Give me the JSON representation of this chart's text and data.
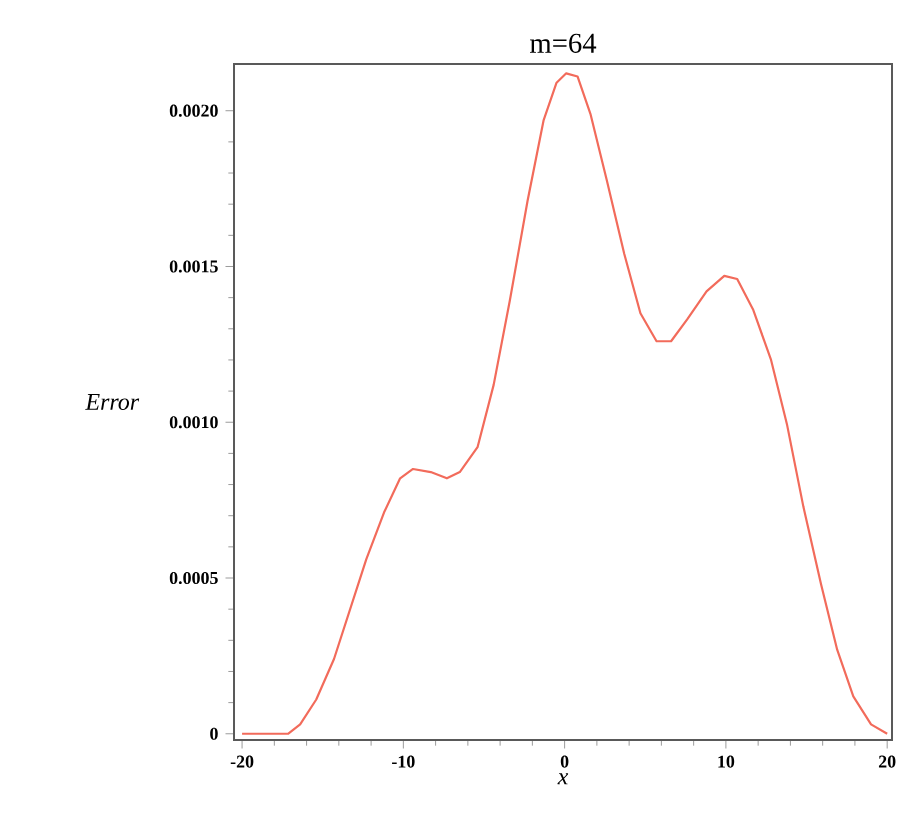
{
  "chart_data": {
    "type": "line",
    "title": "m=64",
    "xlabel": "x",
    "ylabel": "Error",
    "x": [
      -20,
      -18.06,
      -17.15,
      -16.4,
      -15.4,
      -14.3,
      -13.3,
      -12.3,
      -11.2,
      -10.2,
      -9.4,
      -8.3,
      -7.3,
      -6.5,
      -5.4,
      -4.4,
      -3.4,
      -2.3,
      -1.3,
      -0.5,
      0.1,
      0.8,
      1.6,
      2.6,
      3.7,
      4.7,
      5.7,
      6.6,
      7.6,
      8.8,
      9.9,
      10.7,
      11.7,
      12.8,
      13.8,
      14.8,
      15.9,
      16.9,
      17.9,
      19.0,
      20
    ],
    "series": [
      {
        "color": "#f26b5b",
        "values": [
          0,
          0,
          0,
          3e-05,
          0.00011,
          0.00024,
          0.0004,
          0.00056,
          0.00071,
          0.00082,
          0.00085,
          0.00084,
          0.00082,
          0.00084,
          0.00092,
          0.00112,
          0.00139,
          0.00171,
          0.00197,
          0.00209,
          0.00212,
          0.00211,
          0.00199,
          0.00178,
          0.00154,
          0.00135,
          0.00126,
          0.00126,
          0.00133,
          0.00142,
          0.00147,
          0.00146,
          0.00136,
          0.0012,
          0.00099,
          0.00073,
          0.00048,
          0.00027,
          0.00012,
          3e-05,
          0
        ]
      }
    ],
    "xlim": [
      -20.5,
      20.3
    ],
    "ylim": [
      -2e-05,
      0.00215
    ],
    "xticks": [
      -20,
      -10,
      0,
      10,
      20
    ],
    "yticks": [
      0,
      0.0005,
      {
        "value": 0.001,
        "label": "0.0010"
      },
      0.0015,
      {
        "value": 0.002,
        "label": "0.0020"
      }
    ],
    "grid": false,
    "marker": "none",
    "line_style": "solid"
  }
}
